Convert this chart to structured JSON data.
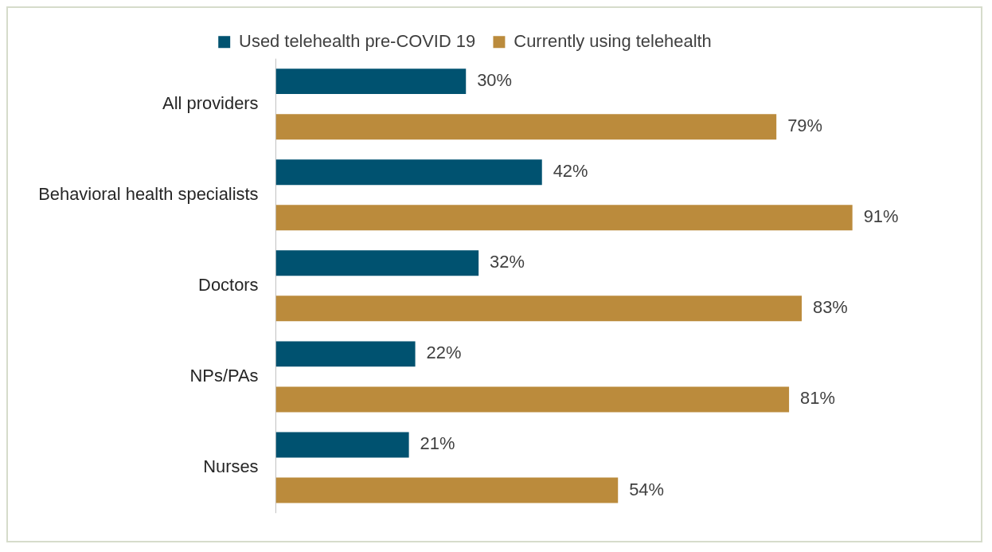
{
  "chart_data": {
    "type": "bar",
    "orientation": "horizontal",
    "categories": [
      "All providers",
      "Behavioral health specialists",
      "Doctors",
      "NPs/PAs",
      "Nurses"
    ],
    "series": [
      {
        "name": "Used telehealth pre-COVID 19",
        "color": "#005270",
        "values": [
          30,
          42,
          32,
          22,
          21
        ],
        "value_labels": [
          "30%",
          "42%",
          "32%",
          "22%",
          "21%"
        ]
      },
      {
        "name": "Currently using telehealth",
        "color": "#bb8b3c",
        "values": [
          79,
          91,
          83,
          81,
          54
        ],
        "value_labels": [
          "79%",
          "91%",
          "83%",
          "81%",
          "54%"
        ]
      }
    ],
    "legend": "top"
  }
}
